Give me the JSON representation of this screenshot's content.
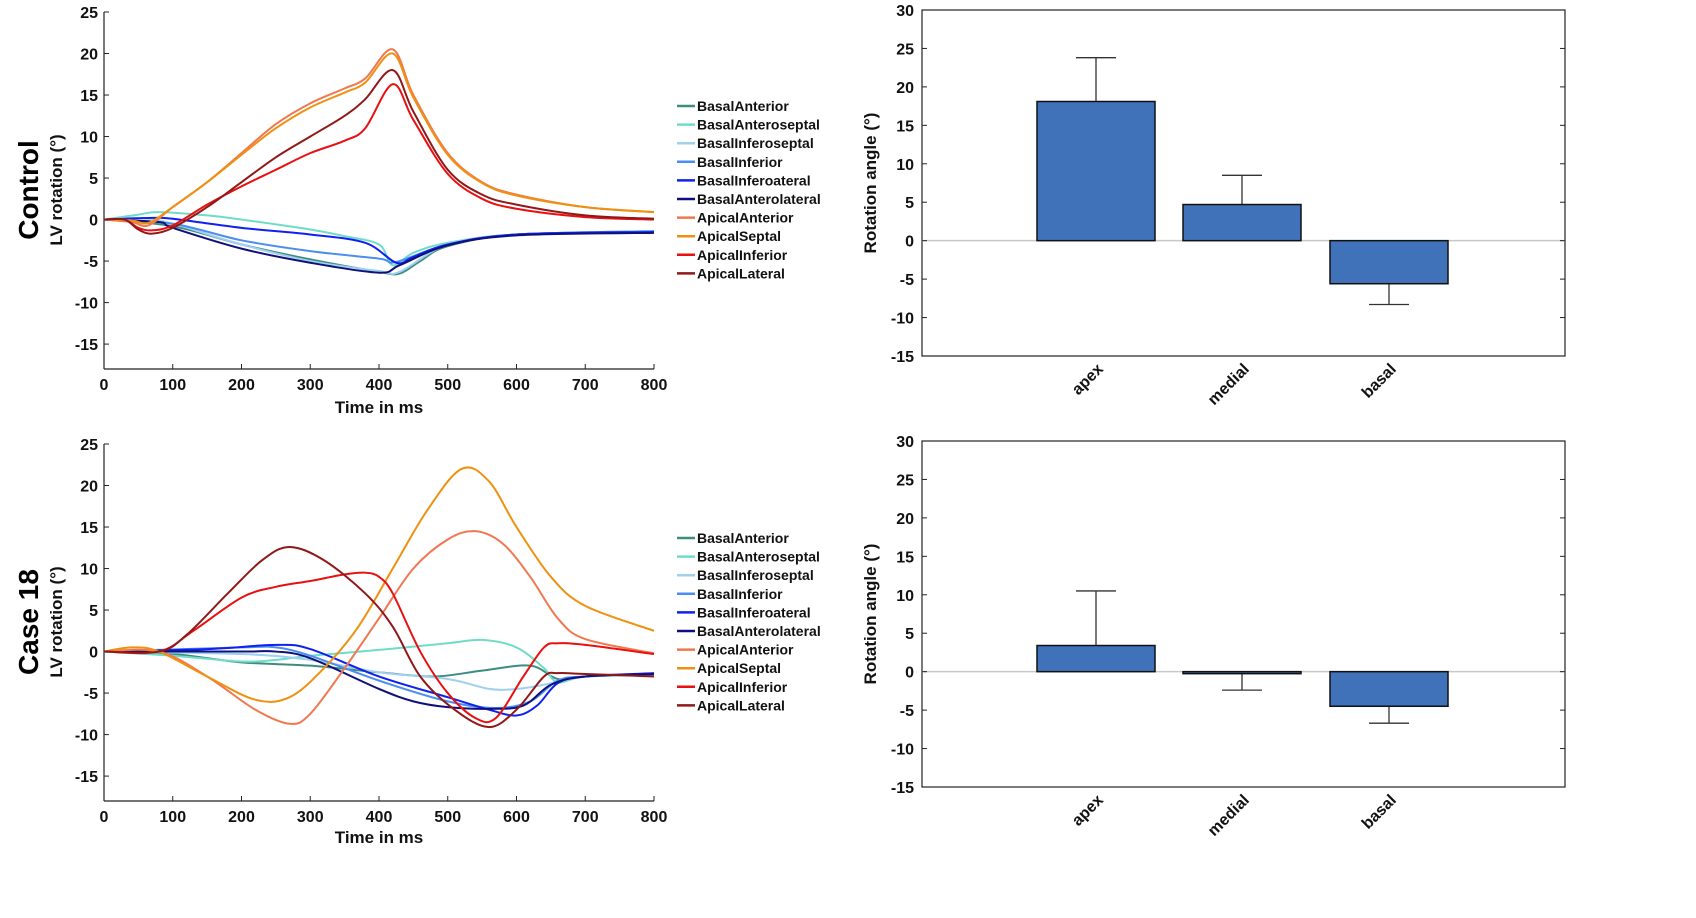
{
  "chart_data": [
    {
      "type": "line",
      "panel_label": "Control",
      "xlabel": "Time in ms",
      "ylabel": "LV rotation (°)",
      "xlim": [
        0,
        800
      ],
      "ylim": [
        -18,
        25
      ],
      "xticks": [
        0,
        100,
        200,
        300,
        400,
        500,
        600,
        700,
        800
      ],
      "yticks": [
        -15,
        -10,
        -5,
        0,
        5,
        10,
        15,
        20,
        25
      ],
      "legend_position": "right",
      "series": [
        {
          "name": "BasalAnterior",
          "color": "#3c8c80",
          "x": [
            0,
            100,
            200,
            300,
            400,
            430,
            460,
            500,
            600,
            800
          ],
          "y": [
            0,
            -0.8,
            -3,
            -4.8,
            -6.3,
            -6.5,
            -5,
            -3.2,
            -1.8,
            -1.5
          ]
        },
        {
          "name": "BasalAnteroseptal",
          "color": "#6fdcc8",
          "x": [
            0,
            50,
            80,
            150,
            200,
            300,
            350,
            400,
            420,
            450,
            500,
            600,
            800
          ],
          "y": [
            0,
            0.6,
            0.9,
            0.5,
            0,
            -1.2,
            -2,
            -3,
            -5.5,
            -4,
            -2.8,
            -1.8,
            -1.5
          ]
        },
        {
          "name": "BasalInferoseptal",
          "color": "#9fd0f0",
          "x": [
            0,
            50,
            100,
            200,
            300,
            400,
            430,
            500,
            600,
            800
          ],
          "y": [
            0,
            0.2,
            -0.5,
            -3,
            -5,
            -6.2,
            -6.3,
            -3,
            -1.8,
            -1.4
          ]
        },
        {
          "name": "BasalInferior",
          "color": "#4a8ef0",
          "x": [
            0,
            100,
            200,
            300,
            400,
            425,
            500,
            600,
            800
          ],
          "y": [
            0,
            -0.5,
            -2.5,
            -3.8,
            -4.7,
            -5.1,
            -3,
            -1.8,
            -1.4
          ]
        },
        {
          "name": "BasalInferoateral",
          "color": "#1020f0",
          "x": [
            0,
            70,
            100,
            200,
            300,
            380,
            425,
            450,
            500,
            600,
            800
          ],
          "y": [
            0,
            0.2,
            0.1,
            -1,
            -1.8,
            -2.8,
            -5.2,
            -4.5,
            -3,
            -1.8,
            -1.5
          ]
        },
        {
          "name": "BasalAnterolateral",
          "color": "#10107a",
          "x": [
            0,
            80,
            100,
            200,
            300,
            400,
            430,
            500,
            600,
            800
          ],
          "y": [
            0,
            -0.3,
            -1,
            -3.5,
            -5.2,
            -6.4,
            -5.5,
            -3.1,
            -1.9,
            -1.6
          ]
        },
        {
          "name": "ApicalAnterior",
          "color": "#f07850",
          "x": [
            0,
            40,
            65,
            100,
            150,
            200,
            250,
            300,
            350,
            380,
            420,
            450,
            500,
            550,
            600,
            700,
            800
          ],
          "y": [
            0,
            -0.3,
            -0.7,
            1.5,
            4.5,
            8,
            11.5,
            14,
            15.8,
            17,
            20.5,
            15,
            8,
            4.5,
            3,
            1.5,
            0.9
          ]
        },
        {
          "name": "ApicalSeptal",
          "color": "#f09010",
          "x": [
            0,
            40,
            65,
            100,
            150,
            200,
            250,
            300,
            350,
            380,
            420,
            450,
            500,
            550,
            600,
            700,
            800
          ],
          "y": [
            0,
            -0.1,
            -0.4,
            1.5,
            4.5,
            7.8,
            11,
            13.5,
            15.3,
            16.5,
            20,
            14.7,
            7.8,
            4.4,
            2.9,
            1.5,
            0.9
          ]
        },
        {
          "name": "ApicalInferior",
          "color": "#e81010",
          "x": [
            0,
            30,
            50,
            70,
            100,
            150,
            200,
            250,
            300,
            350,
            380,
            420,
            450,
            500,
            550,
            600,
            700,
            800
          ],
          "y": [
            0,
            0,
            -1,
            -1.3,
            -0.7,
            1.8,
            4,
            6,
            8,
            9.5,
            11,
            16.3,
            12,
            5.5,
            2.5,
            1.3,
            0.3,
            0
          ]
        },
        {
          "name": "ApicalLateral",
          "color": "#901818",
          "x": [
            0,
            30,
            50,
            70,
            100,
            150,
            200,
            250,
            300,
            350,
            380,
            420,
            450,
            500,
            550,
            600,
            700,
            800
          ],
          "y": [
            0,
            0,
            -1.2,
            -1.7,
            -1,
            1.5,
            4.5,
            7.5,
            10,
            12.5,
            14.5,
            18,
            13,
            6,
            3,
            1.8,
            0.5,
            0.1
          ]
        }
      ]
    },
    {
      "type": "bar",
      "ylabel": "Rotation angle (°)",
      "categories": [
        "apex",
        "medial",
        "basal"
      ],
      "values": [
        18.1,
        4.7,
        -5.6
      ],
      "error_ends": [
        23.8,
        8.5,
        -8.3
      ],
      "ylim": [
        -15,
        30
      ],
      "yticks": [
        -15,
        -10,
        -5,
        0,
        5,
        10,
        15,
        20,
        25,
        30
      ],
      "bar_color": "#3f72b9"
    },
    {
      "type": "line",
      "panel_label": "Case 18",
      "xlabel": "Time in ms",
      "ylabel": "LV rotation (°)",
      "xlim": [
        0,
        800
      ],
      "ylim": [
        -18,
        25
      ],
      "xticks": [
        0,
        100,
        200,
        300,
        400,
        500,
        600,
        700,
        800
      ],
      "yticks": [
        -15,
        -10,
        -5,
        0,
        5,
        10,
        15,
        20,
        25
      ],
      "legend_position": "right",
      "series": [
        {
          "name": "BasalAnterior",
          "color": "#3c8c80",
          "x": [
            0,
            100,
            200,
            300,
            400,
            480,
            550,
            620,
            660,
            700,
            800
          ],
          "y": [
            0,
            -0.3,
            -1.3,
            -1.7,
            -2.5,
            -3,
            -2.3,
            -1.7,
            -3.3,
            -3,
            -2.8
          ]
        },
        {
          "name": "BasalAnteroseptal",
          "color": "#6fdcc8",
          "x": [
            0,
            100,
            200,
            250,
            300,
            400,
            500,
            550,
            600,
            640,
            660,
            700,
            800
          ],
          "y": [
            0,
            -0.5,
            -1.2,
            -1,
            -0.5,
            0.2,
            1,
            1.4,
            0.5,
            -2,
            -3.7,
            -3,
            -2.8
          ]
        },
        {
          "name": "BasalInferoseptal",
          "color": "#9fd0f0",
          "x": [
            0,
            200,
            300,
            400,
            500,
            560,
            600,
            640,
            700,
            800
          ],
          "y": [
            0,
            -0.3,
            -1,
            -2.5,
            -3.3,
            -4.5,
            -4.5,
            -4,
            -3,
            -2.7
          ]
        },
        {
          "name": "BasalInferior",
          "color": "#4a8ef0",
          "x": [
            0,
            200,
            250,
            300,
            400,
            500,
            570,
            620,
            660,
            700,
            800
          ],
          "y": [
            0,
            0.5,
            0.5,
            -0.5,
            -3.5,
            -6,
            -6.8,
            -6,
            -3.5,
            -3,
            -2.7
          ]
        },
        {
          "name": "BasalInferoateral",
          "color": "#1020f0",
          "x": [
            0,
            150,
            250,
            300,
            400,
            500,
            560,
            600,
            630,
            660,
            700,
            800
          ],
          "y": [
            0,
            0.3,
            0.8,
            0.3,
            -3,
            -5.5,
            -7,
            -7.7,
            -6.5,
            -3.8,
            -3,
            -2.6
          ]
        },
        {
          "name": "BasalAnterolateral",
          "color": "#10107a",
          "x": [
            0,
            200,
            250,
            300,
            400,
            450,
            500,
            560,
            610,
            650,
            700,
            800
          ],
          "y": [
            0,
            0,
            0,
            -0.8,
            -4.5,
            -6,
            -6.7,
            -6.9,
            -6.5,
            -4,
            -3,
            -2.7
          ]
        },
        {
          "name": "ApicalAnterior",
          "color": "#f07850",
          "x": [
            0,
            80,
            150,
            220,
            270,
            300,
            350,
            400,
            450,
            500,
            540,
            580,
            620,
            660,
            700,
            800
          ],
          "y": [
            0,
            0,
            -3,
            -7,
            -8.7,
            -7.5,
            -2,
            4,
            10,
            13.5,
            14.5,
            13,
            9,
            4,
            1.5,
            -0.2
          ]
        },
        {
          "name": "ApicalSeptal",
          "color": "#f09010",
          "x": [
            0,
            40,
            80,
            150,
            220,
            270,
            320,
            370,
            420,
            470,
            520,
            560,
            600,
            650,
            700,
            800
          ],
          "y": [
            0,
            0.5,
            0,
            -3,
            -5.8,
            -5.5,
            -2,
            3,
            10,
            17,
            22,
            20.5,
            15,
            9,
            5.5,
            2.5
          ]
        },
        {
          "name": "ApicalInferior",
          "color": "#e81010",
          "x": [
            0,
            80,
            130,
            200,
            250,
            300,
            350,
            380,
            400,
            420,
            460,
            500,
            540,
            570,
            610,
            640,
            660,
            700,
            800
          ],
          "y": [
            0,
            0,
            2.5,
            6.5,
            7.8,
            8.5,
            9.3,
            9.5,
            9,
            7,
            0,
            -5,
            -8,
            -8,
            -3,
            0.5,
            1,
            0.8,
            -0.3
          ]
        },
        {
          "name": "ApicalLateral",
          "color": "#901818",
          "x": [
            0,
            80,
            120,
            180,
            230,
            270,
            320,
            380,
            420,
            460,
            510,
            560,
            600,
            640,
            660,
            700,
            800
          ],
          "y": [
            0,
            0,
            2,
            7,
            11,
            12.6,
            11,
            7,
            3,
            -3,
            -7,
            -9.1,
            -7,
            -3,
            -2.6,
            -2.7,
            -3
          ]
        }
      ]
    },
    {
      "type": "bar",
      "ylabel": "Rotation angle (°)",
      "categories": [
        "apex",
        "medial",
        "basal"
      ],
      "values": [
        3.4,
        -0.2,
        -4.5
      ],
      "error_ends": [
        10.5,
        -2.4,
        -6.7
      ],
      "ylim": [
        -15,
        30
      ],
      "yticks": [
        -15,
        -10,
        -5,
        0,
        5,
        10,
        15,
        20,
        25,
        30
      ],
      "bar_color": "#3f72b9"
    }
  ]
}
